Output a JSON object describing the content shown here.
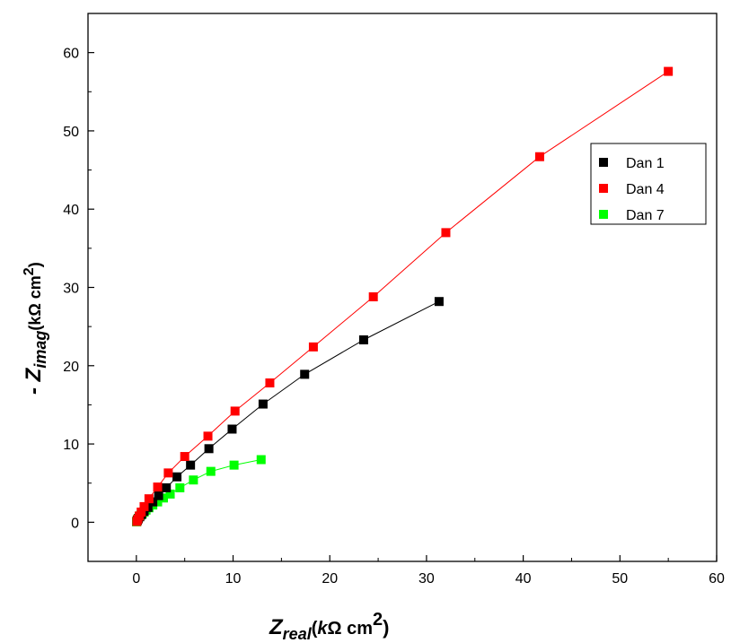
{
  "chart_data": {
    "type": "scatter",
    "xlabel": {
      "main": "Z",
      "sub": "real",
      "unit_pre": "(",
      "unit_italic": "k",
      "unit_mid": "Ω cm",
      "unit_sup": "2",
      "unit_post": ")"
    },
    "ylabel": {
      "prefix": "- Z",
      "sub": "imag",
      "unit_pre": "(kΩ cm",
      "unit_sup": "2",
      "unit_post": ")"
    },
    "xlim": [
      -5,
      60
    ],
    "ylim": [
      -5,
      65
    ],
    "x_ticks": [
      0,
      10,
      20,
      30,
      40,
      50,
      60
    ],
    "y_ticks": [
      0,
      10,
      20,
      30,
      40,
      50,
      60
    ],
    "grid": false,
    "legend_position": "right-upper",
    "series": [
      {
        "name": "Dan 1",
        "color": "#000000",
        "x": [
          0.05,
          0.1,
          0.2,
          0.35,
          0.55,
          0.8,
          1.2,
          1.7,
          2.3,
          3.1,
          4.2,
          5.6,
          7.5,
          9.9,
          13.1,
          17.4,
          23.5,
          31.3
        ],
        "y": [
          0.1,
          0.25,
          0.45,
          0.7,
          1.0,
          1.4,
          1.9,
          2.6,
          3.4,
          4.4,
          5.8,
          7.3,
          9.4,
          11.9,
          15.1,
          18.9,
          23.3,
          28.2
        ]
      },
      {
        "name": "Dan 4",
        "color": "#ff0000",
        "x": [
          0.05,
          0.15,
          0.3,
          0.5,
          0.8,
          1.3,
          2.2,
          3.3,
          5.0,
          7.4,
          10.2,
          13.8,
          18.3,
          24.5,
          32.0,
          41.7,
          55.0
        ],
        "y": [
          0.1,
          0.4,
          0.8,
          1.3,
          2.0,
          3.0,
          4.5,
          6.3,
          8.4,
          11.0,
          14.2,
          17.8,
          22.4,
          28.8,
          37.0,
          46.7,
          57.6
        ]
      },
      {
        "name": "Dan 7",
        "color": "#00ff00",
        "x": [
          0.02,
          0.05,
          0.1,
          0.2,
          0.3,
          0.45,
          0.6,
          0.8,
          1.0,
          1.3,
          1.7,
          2.2,
          2.8,
          3.5,
          4.5,
          5.9,
          7.7,
          10.1,
          12.9
        ],
        "y": [
          0.05,
          0.15,
          0.3,
          0.5,
          0.7,
          0.9,
          1.1,
          1.3,
          1.55,
          1.85,
          2.2,
          2.6,
          3.1,
          3.6,
          4.4,
          5.4,
          6.5,
          7.3,
          8.0
        ]
      }
    ]
  }
}
